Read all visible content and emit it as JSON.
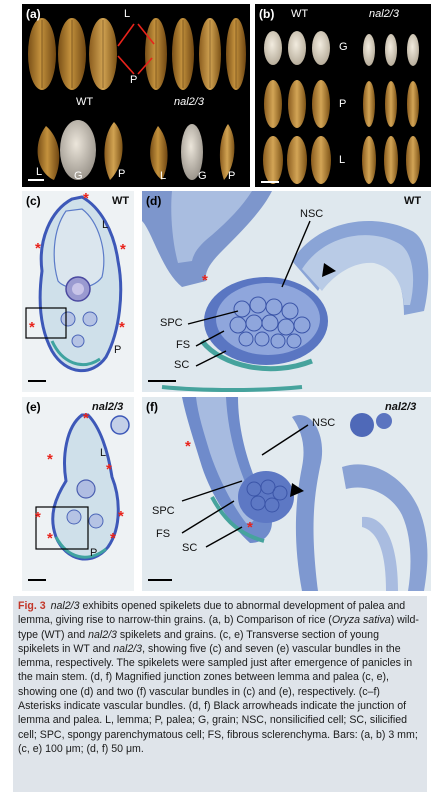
{
  "panels": {
    "a": {
      "letter": "(a)",
      "top_labels": [
        "L",
        "P"
      ],
      "wt_label": "WT",
      "mutant_label": "nal2/3",
      "bottom_labels": [
        "L",
        "G",
        "P",
        "L",
        "G",
        "P"
      ]
    },
    "b": {
      "letter": "(b)",
      "wt_label": "WT",
      "mutant_label": "nal2/3",
      "row_labels": [
        "G",
        "P",
        "L"
      ]
    },
    "c": {
      "letter": "(c)",
      "genotype": "WT",
      "organ_labels": [
        "L",
        "P"
      ]
    },
    "d": {
      "letter": "(d)",
      "genotype": "WT",
      "labels": [
        "NSC",
        "SPC",
        "FS",
        "SC"
      ]
    },
    "e": {
      "letter": "(e)",
      "genotype": "nal2/3",
      "organ_labels": [
        "L",
        "P"
      ]
    },
    "f": {
      "letter": "(f)",
      "genotype": "nal2/3",
      "labels": [
        "NSC",
        "SPC",
        "FS",
        "SC"
      ]
    }
  },
  "caption": {
    "fig_label": "Fig. 3",
    "s1_gene": "nal2/3",
    "s1": " exhibits opened spikelets due to abnormal development of palea and lemma, giving rise to narrow-thin grains. (a, b) Comparison of rice (",
    "s1_species": "Oryza sativa",
    "s2": ") wild-type (WT) and ",
    "s2_gene": "nal2/3",
    "s3": " spikelets and grains. (c, e) Transverse section of young spikelets in WT and ",
    "s3_gene": "nal2/3",
    "s4": ", showing five (c) and seven (e) vascular bundles in the lemma, respectively. The spikelets were sampled just after emergence of panicles in the main stem. (d, f) Magnified junction zones between lemma and palea (c, e), showing one (d) and two (f) vascular bundles in (c) and (e), respectively. (c–f) Asterisks indicate vascular bundles. (d, f) Black arrowheads indicate the junction of lemma and palea. L, lemma; P, palea; G, grain; NSC, nonsilicified cell; SC, silicified cell; SPC, spongy parenchymatous cell; FS, fibrous sclerenchyma. Bars: (a, b) 3 mm; (c, e) 100 μm; (d, f) 50 μm."
  },
  "colors": {
    "panel_bg_dark": "#000000",
    "tissue_light": "#dfe8ee",
    "stain_blue": "#3d58b8",
    "stain_teal": "#4aa09a",
    "asterisk": "#e8231b",
    "caption_bg": "#dfe4ea",
    "caption_accent": "#c23628"
  }
}
